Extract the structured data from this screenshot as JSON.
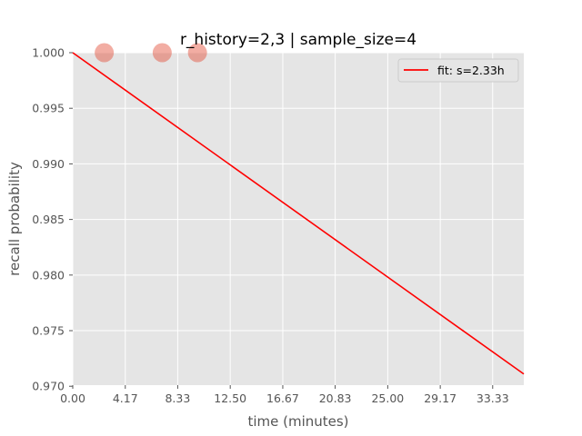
{
  "chart_data": {
    "type": "scatter",
    "title": "r_history=2,3 | sample_size=4",
    "xlabel": "time (minutes)",
    "ylabel": "recall probability",
    "xlim": [
      0,
      35.8
    ],
    "ylim": [
      0.9701,
      1.0
    ],
    "x_ticks": [
      0.0,
      4.17,
      8.33,
      12.5,
      16.67,
      20.83,
      25.0,
      29.17,
      33.33
    ],
    "x_tick_labels": [
      "0.00",
      "4.17",
      "8.33",
      "12.50",
      "16.67",
      "20.83",
      "25.00",
      "29.17",
      "33.33"
    ],
    "y_ticks": [
      0.97,
      0.975,
      0.98,
      0.985,
      0.99,
      0.995,
      1.0
    ],
    "y_tick_labels": [
      "0.970",
      "0.975",
      "0.980",
      "0.985",
      "0.990",
      "0.995",
      "1.000"
    ],
    "grid": true,
    "legend_position": "top-right",
    "points": {
      "x": [
        2.5,
        7.1,
        9.9
      ],
      "y": [
        1.0,
        1.0,
        1.0
      ],
      "color": "#E24A33"
    },
    "series": [
      {
        "name": "fit: s=2.33h",
        "color": "#ff0000",
        "x": [
          0.0,
          35.8
        ],
        "y": [
          1.0,
          0.9711
        ]
      }
    ],
    "colors": {
      "background": "#E5E5E5",
      "grid": "#ffffff"
    }
  }
}
